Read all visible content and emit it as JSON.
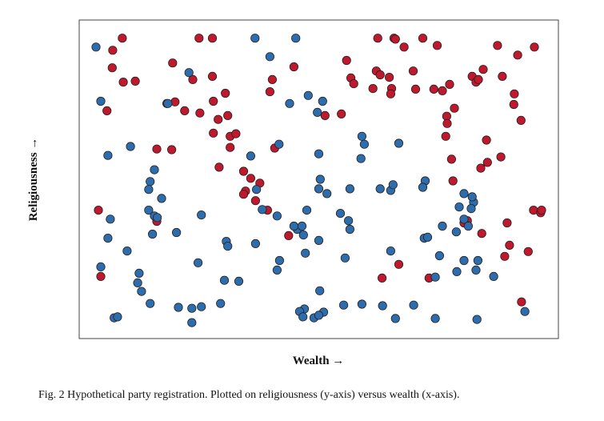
{
  "chart_data": {
    "type": "scatter",
    "title": "",
    "xlabel": "Wealth →",
    "ylabel": "Religiousness →",
    "xlim": [
      0,
      100
    ],
    "ylim": [
      0,
      100
    ],
    "grid": false,
    "legend": "none",
    "colors": {
      "Red": "#c0182d",
      "Blue": "#2e6dad",
      "outline": "#222222",
      "frame": "#444444"
    },
    "series": [
      {
        "name": "Red",
        "color": "#c0182d",
        "points": [
          [
            9.0,
            94.3
          ],
          [
            7.0,
            90.5
          ],
          [
            25.0,
            94.3
          ],
          [
            27.8,
            94.3
          ],
          [
            6.9,
            85.0
          ],
          [
            9.2,
            80.5
          ],
          [
            11.7,
            80.8
          ],
          [
            19.5,
            86.5
          ],
          [
            23.7,
            81.3
          ],
          [
            27.8,
            82.3
          ],
          [
            5.8,
            71.5
          ],
          [
            18.3,
            73.8
          ],
          [
            20.0,
            74.3
          ],
          [
            22.0,
            71.5
          ],
          [
            25.2,
            70.8
          ],
          [
            28.0,
            74.5
          ],
          [
            30.5,
            77.0
          ],
          [
            29.0,
            68.8
          ],
          [
            31.0,
            70.0
          ],
          [
            28.0,
            64.5
          ],
          [
            31.5,
            63.5
          ],
          [
            32.7,
            64.3
          ],
          [
            31.5,
            60.0
          ],
          [
            16.2,
            59.5
          ],
          [
            19.3,
            59.3
          ],
          [
            40.3,
            81.3
          ],
          [
            39.8,
            77.5
          ],
          [
            44.8,
            85.3
          ],
          [
            40.8,
            59.8
          ],
          [
            29.2,
            53.8
          ],
          [
            34.3,
            52.5
          ],
          [
            35.8,
            50.3
          ],
          [
            37.7,
            48.8
          ],
          [
            34.7,
            46.3
          ],
          [
            34.3,
            45.3
          ],
          [
            36.8,
            43.3
          ],
          [
            39.3,
            40.3
          ],
          [
            4.0,
            40.3
          ],
          [
            4.5,
            19.5
          ],
          [
            16.2,
            36.8
          ],
          [
            43.7,
            32.3
          ],
          [
            51.3,
            70.0
          ],
          [
            54.7,
            70.5
          ],
          [
            55.8,
            87.3
          ],
          [
            56.7,
            81.8
          ],
          [
            57.3,
            80.0
          ],
          [
            61.3,
            78.5
          ],
          [
            62.0,
            84.0
          ],
          [
            62.8,
            82.8
          ],
          [
            62.3,
            94.3
          ],
          [
            64.7,
            82.0
          ],
          [
            65.2,
            78.5
          ],
          [
            65.7,
            94.3
          ],
          [
            66.0,
            94.0
          ],
          [
            67.8,
            91.5
          ],
          [
            69.7,
            84.0
          ],
          [
            65.0,
            76.8
          ],
          [
            70.2,
            78.3
          ],
          [
            71.7,
            94.3
          ],
          [
            74.7,
            92.0
          ],
          [
            74.0,
            78.3
          ],
          [
            75.8,
            77.8
          ],
          [
            77.3,
            79.8
          ],
          [
            78.3,
            72.3
          ],
          [
            76.7,
            69.8
          ],
          [
            76.8,
            67.5
          ],
          [
            76.5,
            63.5
          ],
          [
            77.7,
            56.3
          ],
          [
            82.0,
            82.3
          ],
          [
            82.8,
            80.5
          ],
          [
            83.3,
            81.3
          ],
          [
            84.3,
            84.5
          ],
          [
            85.0,
            62.3
          ],
          [
            83.8,
            53.5
          ],
          [
            85.2,
            55.3
          ],
          [
            78.0,
            49.5
          ],
          [
            87.3,
            92.0
          ],
          [
            88.3,
            82.3
          ],
          [
            91.5,
            89.0
          ],
          [
            90.8,
            76.8
          ],
          [
            90.7,
            73.5
          ],
          [
            92.2,
            68.5
          ],
          [
            88.0,
            57.0
          ],
          [
            89.3,
            36.3
          ],
          [
            81.0,
            37.0
          ],
          [
            80.3,
            36.3
          ],
          [
            84.0,
            33.0
          ],
          [
            89.8,
            29.3
          ],
          [
            88.8,
            25.8
          ],
          [
            95.0,
            91.5
          ],
          [
            94.8,
            40.3
          ],
          [
            96.3,
            39.5
          ],
          [
            96.5,
            40.3
          ],
          [
            93.7,
            27.3
          ],
          [
            66.7,
            23.3
          ],
          [
            73.0,
            19.0
          ],
          [
            63.2,
            19.0
          ],
          [
            92.3,
            11.5
          ]
        ]
      },
      {
        "name": "Blue",
        "color": "#2e6dad",
        "points": [
          [
            3.5,
            91.5
          ],
          [
            4.5,
            74.5
          ],
          [
            6.0,
            57.5
          ],
          [
            10.7,
            60.3
          ],
          [
            18.5,
            73.8
          ],
          [
            22.9,
            83.5
          ],
          [
            36.7,
            94.3
          ],
          [
            39.8,
            88.5
          ],
          [
            45.2,
            94.3
          ],
          [
            43.9,
            73.8
          ],
          [
            47.8,
            76.3
          ],
          [
            50.8,
            74.5
          ],
          [
            49.7,
            71.0
          ],
          [
            6.5,
            37.5
          ],
          [
            6.0,
            31.5
          ],
          [
            4.5,
            22.5
          ],
          [
            10.0,
            27.5
          ],
          [
            12.5,
            20.5
          ],
          [
            13.0,
            14.8
          ],
          [
            12.2,
            17.5
          ],
          [
            14.8,
            49.3
          ],
          [
            15.7,
            53.0
          ],
          [
            14.5,
            46.8
          ],
          [
            17.2,
            44.0
          ],
          [
            14.5,
            40.3
          ],
          [
            15.7,
            38.5
          ],
          [
            16.3,
            38.0
          ],
          [
            15.3,
            32.8
          ],
          [
            20.3,
            33.3
          ],
          [
            25.5,
            38.8
          ],
          [
            30.7,
            30.5
          ],
          [
            31.0,
            29.0
          ],
          [
            24.8,
            23.8
          ],
          [
            30.3,
            18.3
          ],
          [
            33.3,
            18.0
          ],
          [
            35.8,
            57.3
          ],
          [
            41.7,
            61.0
          ],
          [
            37.0,
            46.8
          ],
          [
            38.2,
            40.5
          ],
          [
            41.3,
            38.5
          ],
          [
            47.5,
            40.3
          ],
          [
            45.5,
            34.3
          ],
          [
            44.8,
            35.3
          ],
          [
            46.5,
            35.3
          ],
          [
            41.8,
            24.5
          ],
          [
            41.3,
            21.5
          ],
          [
            36.8,
            29.8
          ],
          [
            50.0,
            58.0
          ],
          [
            50.3,
            50.0
          ],
          [
            50.0,
            47.0
          ],
          [
            51.7,
            45.5
          ],
          [
            46.8,
            32.5
          ],
          [
            50.0,
            30.8
          ],
          [
            47.2,
            26.8
          ],
          [
            50.2,
            15.0
          ],
          [
            51.0,
            8.3
          ],
          [
            54.5,
            39.3
          ],
          [
            56.2,
            37.0
          ],
          [
            56.5,
            34.3
          ],
          [
            55.5,
            25.3
          ],
          [
            59.0,
            63.5
          ],
          [
            59.5,
            61.0
          ],
          [
            58.8,
            56.5
          ],
          [
            56.5,
            47.0
          ],
          [
            62.8,
            47.0
          ],
          [
            65.0,
            46.5
          ],
          [
            65.5,
            48.3
          ],
          [
            66.7,
            61.3
          ],
          [
            72.2,
            49.5
          ],
          [
            71.7,
            47.5
          ],
          [
            72.0,
            31.5
          ],
          [
            65.0,
            27.5
          ],
          [
            47.0,
            9.3
          ],
          [
            46.0,
            8.5
          ],
          [
            46.7,
            6.8
          ],
          [
            49.0,
            6.5
          ],
          [
            50.0,
            7.3
          ],
          [
            55.2,
            10.5
          ],
          [
            59.0,
            10.8
          ],
          [
            63.3,
            10.3
          ],
          [
            69.8,
            10.5
          ],
          [
            66.0,
            6.3
          ],
          [
            74.3,
            6.3
          ],
          [
            83.0,
            6.0
          ],
          [
            80.3,
            45.5
          ],
          [
            82.3,
            42.8
          ],
          [
            82.0,
            44.5
          ],
          [
            79.3,
            41.3
          ],
          [
            81.8,
            40.8
          ],
          [
            80.3,
            37.5
          ],
          [
            75.8,
            35.3
          ],
          [
            78.7,
            33.5
          ],
          [
            81.2,
            35.3
          ],
          [
            72.7,
            31.8
          ],
          [
            80.3,
            24.5
          ],
          [
            83.2,
            24.5
          ],
          [
            75.2,
            26.0
          ],
          [
            78.8,
            21.0
          ],
          [
            74.3,
            19.3
          ],
          [
            82.8,
            21.5
          ],
          [
            86.5,
            19.5
          ],
          [
            93.0,
            8.5
          ],
          [
            23.5,
            9.5
          ],
          [
            7.3,
            6.5
          ],
          [
            8.0,
            6.8
          ],
          [
            14.8,
            11.0
          ],
          [
            20.7,
            9.8
          ],
          [
            23.5,
            5.0
          ],
          [
            25.5,
            10.0
          ],
          [
            29.5,
            11.0
          ]
        ]
      }
    ]
  },
  "caption": "Fig. 2 Hypothetical party registration. Plotted on religiousness (y-axis) versus wealth (x-axis)."
}
